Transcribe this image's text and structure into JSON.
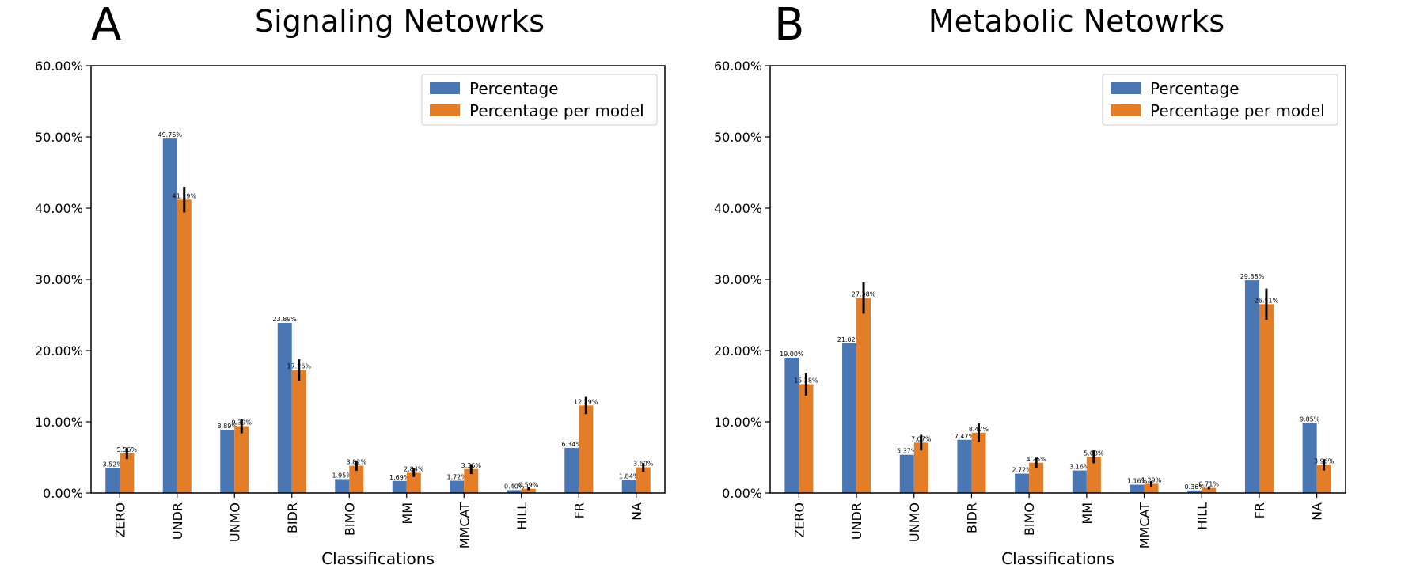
{
  "chart_data": [
    {
      "type": "bar",
      "panel": "A",
      "title": "Signaling Netowrks",
      "xlabel": "Classifications",
      "ylabel": "",
      "ylim": [
        0,
        60
      ],
      "yticks": [
        "0.00%",
        "10.00%",
        "20.00%",
        "30.00%",
        "40.00%",
        "50.00%",
        "60.00%"
      ],
      "legend_position": "top-right",
      "categories": [
        "ZERO",
        "UNDR",
        "UNMO",
        "BIDR",
        "BIMO",
        "MM",
        "MMCAT",
        "HILL",
        "FR",
        "NA"
      ],
      "series": [
        {
          "name": "Percentage",
          "color": "#4a76b3",
          "values": [
            3.52,
            49.76,
            8.89,
            23.89,
            1.95,
            1.69,
            1.72,
            0.4,
            6.34,
            1.84
          ],
          "labels": [
            "3.52%",
            "49.76%",
            "8.89%",
            "23.89%",
            "1.95%",
            "1.69%",
            "1.72%",
            "0.40%",
            "6.34%",
            "1.84%"
          ]
        },
        {
          "name": "Percentage per model",
          "color": "#e37d28",
          "values": [
            5.56,
            41.19,
            9.39,
            17.26,
            3.82,
            2.84,
            3.36,
            0.59,
            12.29,
            3.6
          ],
          "labels": [
            "5.56%",
            "41.19%",
            "9.39%",
            "17.26%",
            "3.82%",
            "2.84%",
            "3.36%",
            "0.59%",
            "12.29%",
            "3.60%"
          ],
          "errors": [
            0.8,
            1.8,
            1.0,
            1.5,
            0.7,
            0.6,
            0.7,
            0.2,
            1.2,
            0.6
          ]
        }
      ]
    },
    {
      "type": "bar",
      "panel": "B",
      "title": "Metabolic Netowrks",
      "xlabel": "Classifications",
      "ylabel": "",
      "ylim": [
        0,
        60
      ],
      "yticks": [
        "0.00%",
        "10.00%",
        "20.00%",
        "30.00%",
        "40.00%",
        "50.00%",
        "60.00%"
      ],
      "legend_position": "top-right",
      "categories": [
        "ZERO",
        "UNDR",
        "UNMO",
        "BIDR",
        "BIMO",
        "MM",
        "MMCAT",
        "HILL",
        "FR",
        "NA"
      ],
      "series": [
        {
          "name": "Percentage",
          "color": "#4a76b3",
          "values": [
            19.0,
            21.02,
            5.37,
            7.47,
            2.72,
            3.16,
            1.16,
            0.36,
            29.88,
            9.85
          ],
          "labels": [
            "19.00%",
            "21.02%",
            "5.37%",
            "7.47%",
            "2.72%",
            "3.16%",
            "1.16%",
            "0.36%",
            "29.88%",
            "9.85%"
          ]
        },
        {
          "name": "Percentage per model",
          "color": "#e37d28",
          "values": [
            15.28,
            27.38,
            7.07,
            8.47,
            4.25,
            5.08,
            1.29,
            0.71,
            26.51,
            3.96
          ],
          "labels": [
            "15.28%",
            "27.38%",
            "7.07%",
            "8.47%",
            "4.25%",
            "5.08%",
            "1.29%",
            "0.71%",
            "26.51%",
            "3.96%"
          ],
          "errors": [
            1.6,
            2.2,
            1.1,
            1.3,
            0.7,
            0.9,
            0.4,
            0.2,
            2.2,
            0.8
          ]
        }
      ]
    }
  ]
}
